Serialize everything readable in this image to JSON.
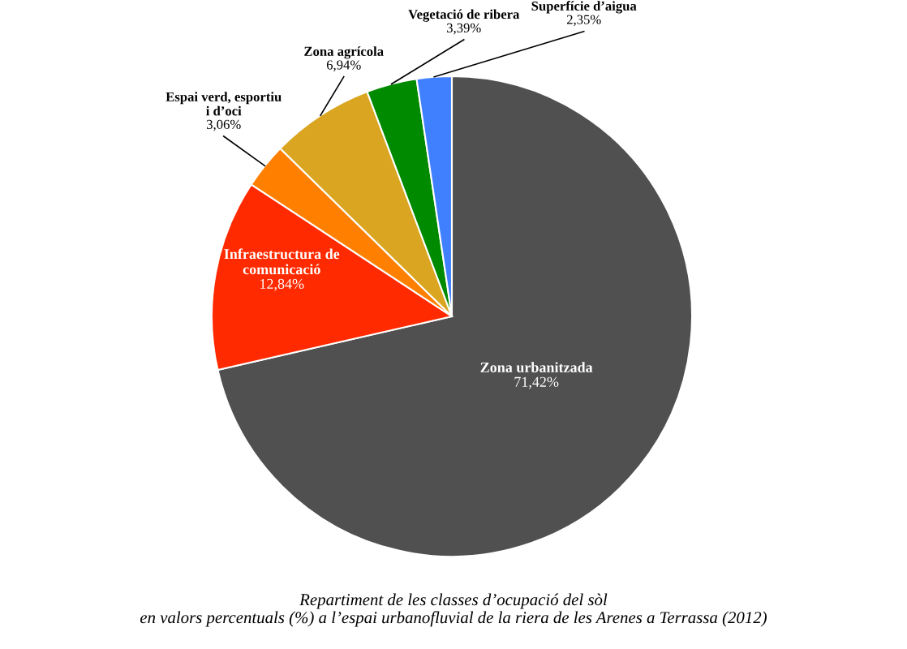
{
  "chart_data": {
    "type": "pie",
    "categories": [
      "Zona urbanitzada",
      "Infraestructura de\ncomunicació",
      "Espai verd, esportiu\ni d’oci",
      "Zona agrícola",
      "Vegetació de ribera",
      "Superfície d’aigua"
    ],
    "values": [
      71.42,
      12.84,
      3.06,
      6.94,
      3.39,
      2.35
    ],
    "value_labels": [
      "71,42%",
      "12,84%",
      "3,06%",
      "6,94%",
      "3,39%",
      "2,35%"
    ],
    "colors": [
      "#505050",
      "#ff2a00",
      "#ff8000",
      "#daa520",
      "#008a00",
      "#4080ff"
    ],
    "legend": false,
    "annotations": [
      "Repartiment de les classes d’ocupació del sòl\nen valors percentuals (%) a l’espai urbanofluvial de la riera de les Arenes a Terrassa (2012)"
    ]
  }
}
